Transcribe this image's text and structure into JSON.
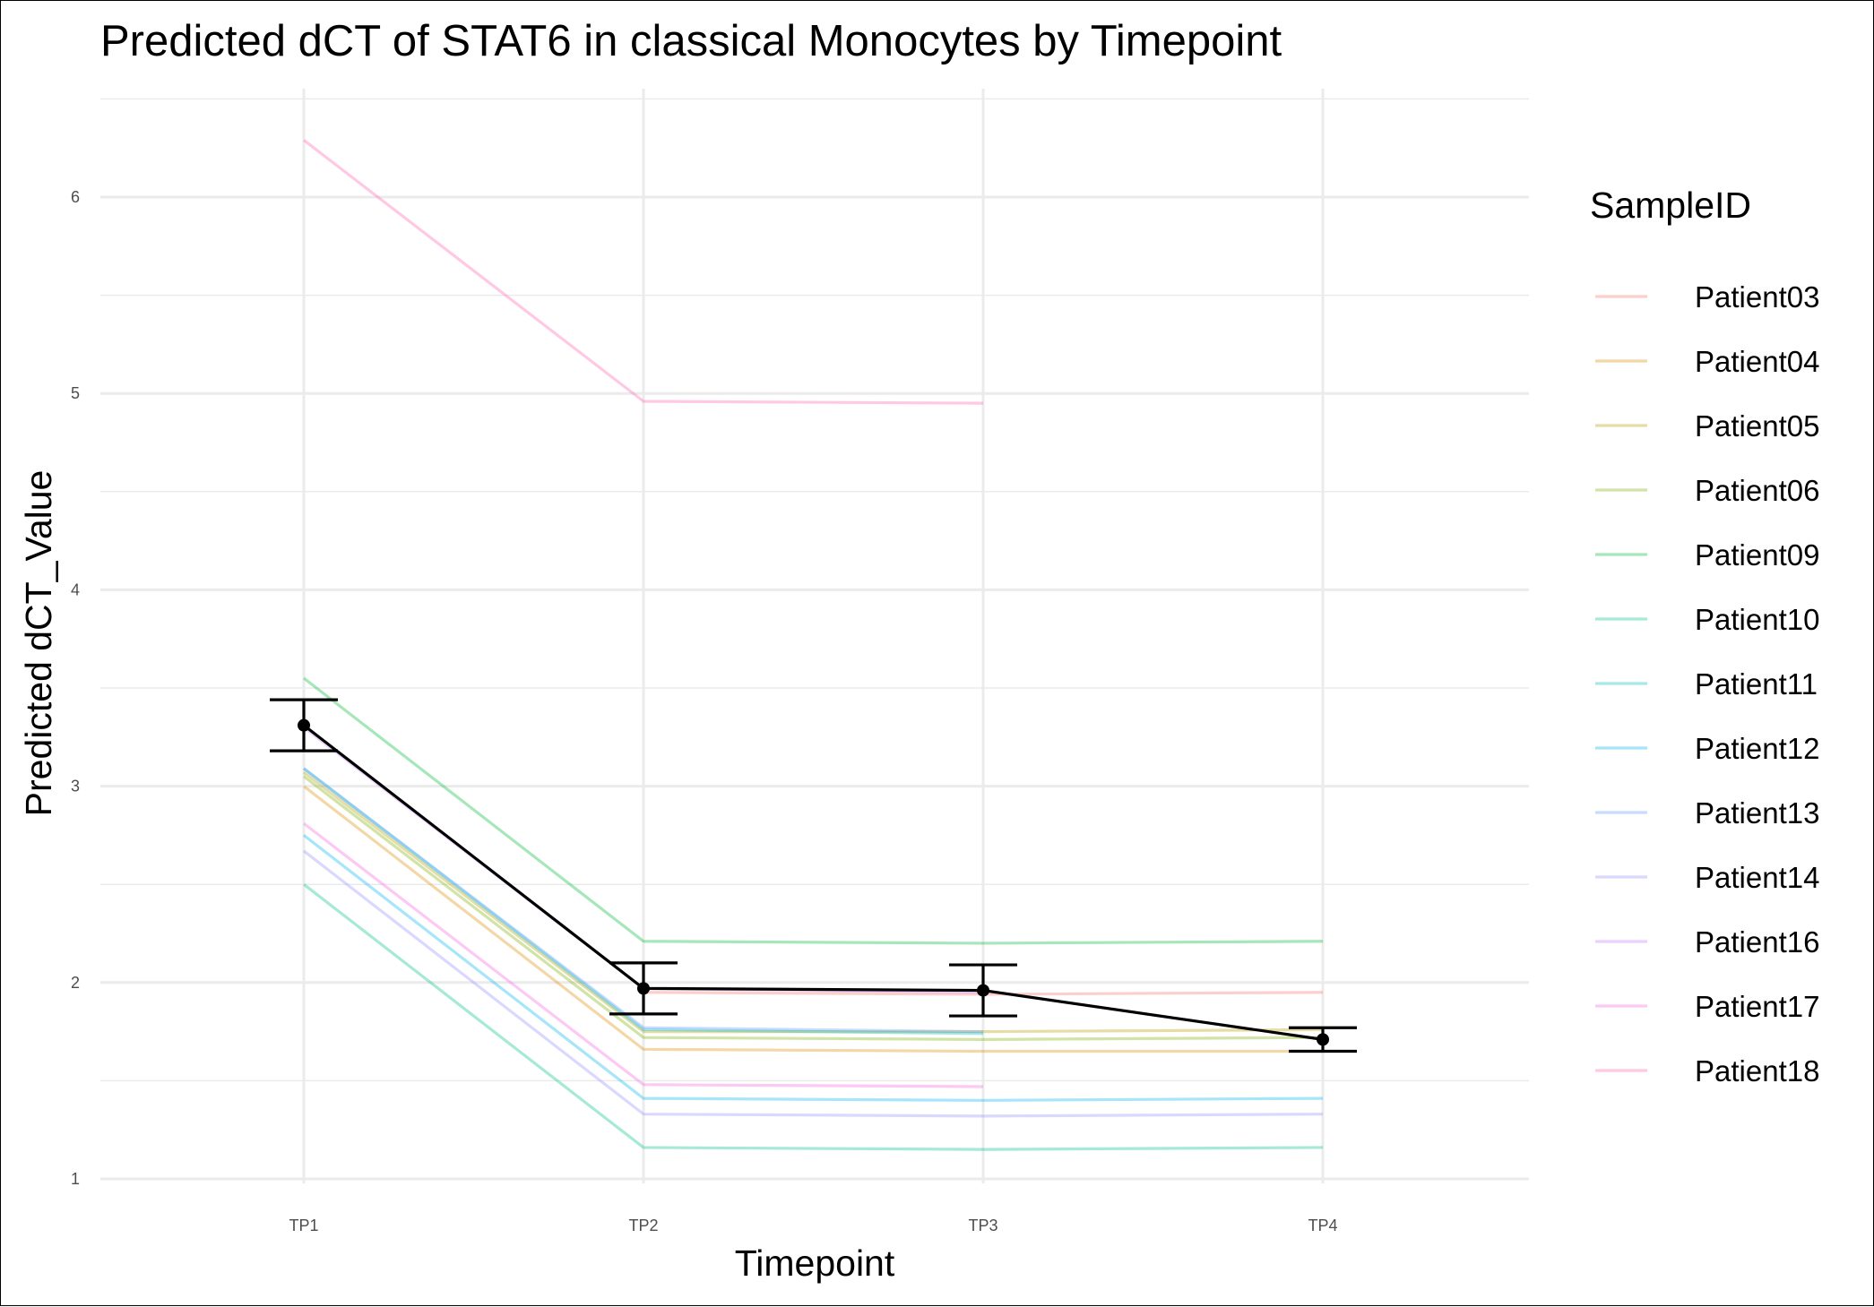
{
  "chart_data": {
    "type": "line",
    "title": "Predicted dCT of  STAT6 in  classical  Monocytes by Timepoint",
    "xlabel": "Timepoint",
    "ylabel": "Predicted dCT_Value",
    "categories": [
      "TP1",
      "TP2",
      "TP3",
      "TP4"
    ],
    "y_ticks": [
      "1",
      "2",
      "3",
      "4",
      "5",
      "6"
    ],
    "ylim": [
      0.98,
      6.55
    ],
    "grid": true,
    "legend_title": "SampleID",
    "legend_position": "right",
    "series": [
      {
        "name": "Patient03",
        "color": "#F8766D",
        "values": [
          null,
          1.95,
          1.94,
          1.95
        ]
      },
      {
        "name": "Patient04",
        "color": "#DE8C00",
        "values": [
          3.0,
          1.66,
          1.65,
          1.65
        ]
      },
      {
        "name": "Patient05",
        "color": "#B79F00",
        "values": [
          3.07,
          1.75,
          1.75,
          1.76
        ]
      },
      {
        "name": "Patient06",
        "color": "#7CAE00",
        "values": [
          3.05,
          1.72,
          1.71,
          1.72
        ]
      },
      {
        "name": "Patient09",
        "color": "#00BA38",
        "values": [
          3.55,
          2.21,
          2.2,
          2.21
        ]
      },
      {
        "name": "Patient10",
        "color": "#00C08B",
        "values": [
          2.5,
          1.16,
          1.15,
          1.16
        ]
      },
      {
        "name": "Patient11",
        "color": "#00BFC4",
        "values": [
          3.09,
          1.76,
          1.74,
          null
        ]
      },
      {
        "name": "Patient12",
        "color": "#00B4F0",
        "values": [
          2.75,
          1.41,
          1.4,
          1.41
        ]
      },
      {
        "name": "Patient13",
        "color": "#619CFF",
        "values": [
          3.09,
          1.77,
          1.75,
          null
        ]
      },
      {
        "name": "Patient14",
        "color": "#9590FF",
        "values": [
          2.67,
          1.33,
          1.32,
          1.33
        ]
      },
      {
        "name": "Patient16",
        "color": "#C77CFF",
        "values": [
          3.3,
          1.97,
          1.95,
          null
        ]
      },
      {
        "name": "Patient17",
        "color": "#F564E3",
        "values": [
          2.81,
          1.48,
          1.47,
          null
        ]
      },
      {
        "name": "Patient18",
        "color": "#FF64B0",
        "values": [
          6.29,
          4.96,
          4.95,
          null
        ]
      }
    ],
    "mean": {
      "color": "#000000",
      "values": [
        3.31,
        1.97,
        1.96,
        1.71
      ],
      "lower": [
        3.18,
        1.84,
        1.83,
        1.65
      ],
      "upper": [
        3.44,
        2.1,
        2.09,
        1.77
      ]
    }
  }
}
